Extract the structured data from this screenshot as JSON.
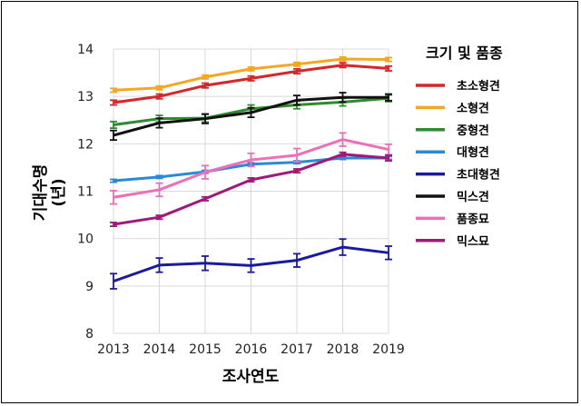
{
  "chart_data": {
    "type": "line",
    "x": [
      2013,
      2014,
      2015,
      2016,
      2017,
      2018,
      2019
    ],
    "xlabel": "조사연도",
    "ylabel": "기대수명",
    "ylabel_unit": "(년)",
    "ylim": [
      8,
      14
    ],
    "yticks": [
      8,
      9,
      10,
      11,
      12,
      13,
      14
    ],
    "grid": true,
    "legend": {
      "title": "크기 및 품종",
      "placement": "right"
    },
    "series": [
      {
        "name": "초소형견",
        "color": "#d62728",
        "values": [
          12.87,
          13.0,
          13.23,
          13.38,
          13.53,
          13.66,
          13.59
        ],
        "err": [
          0.05,
          0.05,
          0.05,
          0.05,
          0.05,
          0.05,
          0.05
        ]
      },
      {
        "name": "소형견",
        "color": "#f5a623",
        "values": [
          13.13,
          13.18,
          13.41,
          13.58,
          13.68,
          13.79,
          13.78
        ],
        "err": [
          0.04,
          0.04,
          0.04,
          0.04,
          0.04,
          0.04,
          0.04
        ]
      },
      {
        "name": "중형견",
        "color": "#2e8b2e",
        "values": [
          12.4,
          12.53,
          12.54,
          12.74,
          12.82,
          12.88,
          12.96
        ],
        "err": [
          0.07,
          0.07,
          0.08,
          0.08,
          0.08,
          0.08,
          0.07
        ]
      },
      {
        "name": "대형견",
        "color": "#2a8ad4",
        "values": [
          11.22,
          11.3,
          11.41,
          11.57,
          11.61,
          11.7,
          11.7
        ],
        "err": [
          0.03,
          0.03,
          0.03,
          0.03,
          0.03,
          0.03,
          0.03
        ]
      },
      {
        "name": "초대형견",
        "color": "#1a1aa0",
        "values": [
          9.1,
          9.44,
          9.48,
          9.43,
          9.54,
          9.82,
          9.7
        ],
        "err": [
          0.16,
          0.15,
          0.15,
          0.14,
          0.14,
          0.17,
          0.14
        ]
      },
      {
        "name": "믹스견",
        "color": "#111111",
        "values": [
          12.18,
          12.44,
          12.53,
          12.66,
          12.92,
          12.98,
          12.98
        ],
        "err": [
          0.1,
          0.1,
          0.1,
          0.1,
          0.1,
          0.1,
          0.07
        ]
      },
      {
        "name": "품종묘",
        "color": "#ec6fb8",
        "values": [
          10.87,
          11.03,
          11.4,
          11.66,
          11.76,
          12.09,
          11.88
        ],
        "err": [
          0.14,
          0.14,
          0.14,
          0.14,
          0.14,
          0.14,
          0.11
        ]
      },
      {
        "name": "믹스묘",
        "color": "#a0197a",
        "values": [
          10.3,
          10.45,
          10.84,
          11.24,
          11.43,
          11.78,
          11.7
        ],
        "err": [
          0.04,
          0.04,
          0.04,
          0.04,
          0.04,
          0.04,
          0.06
        ]
      }
    ]
  }
}
